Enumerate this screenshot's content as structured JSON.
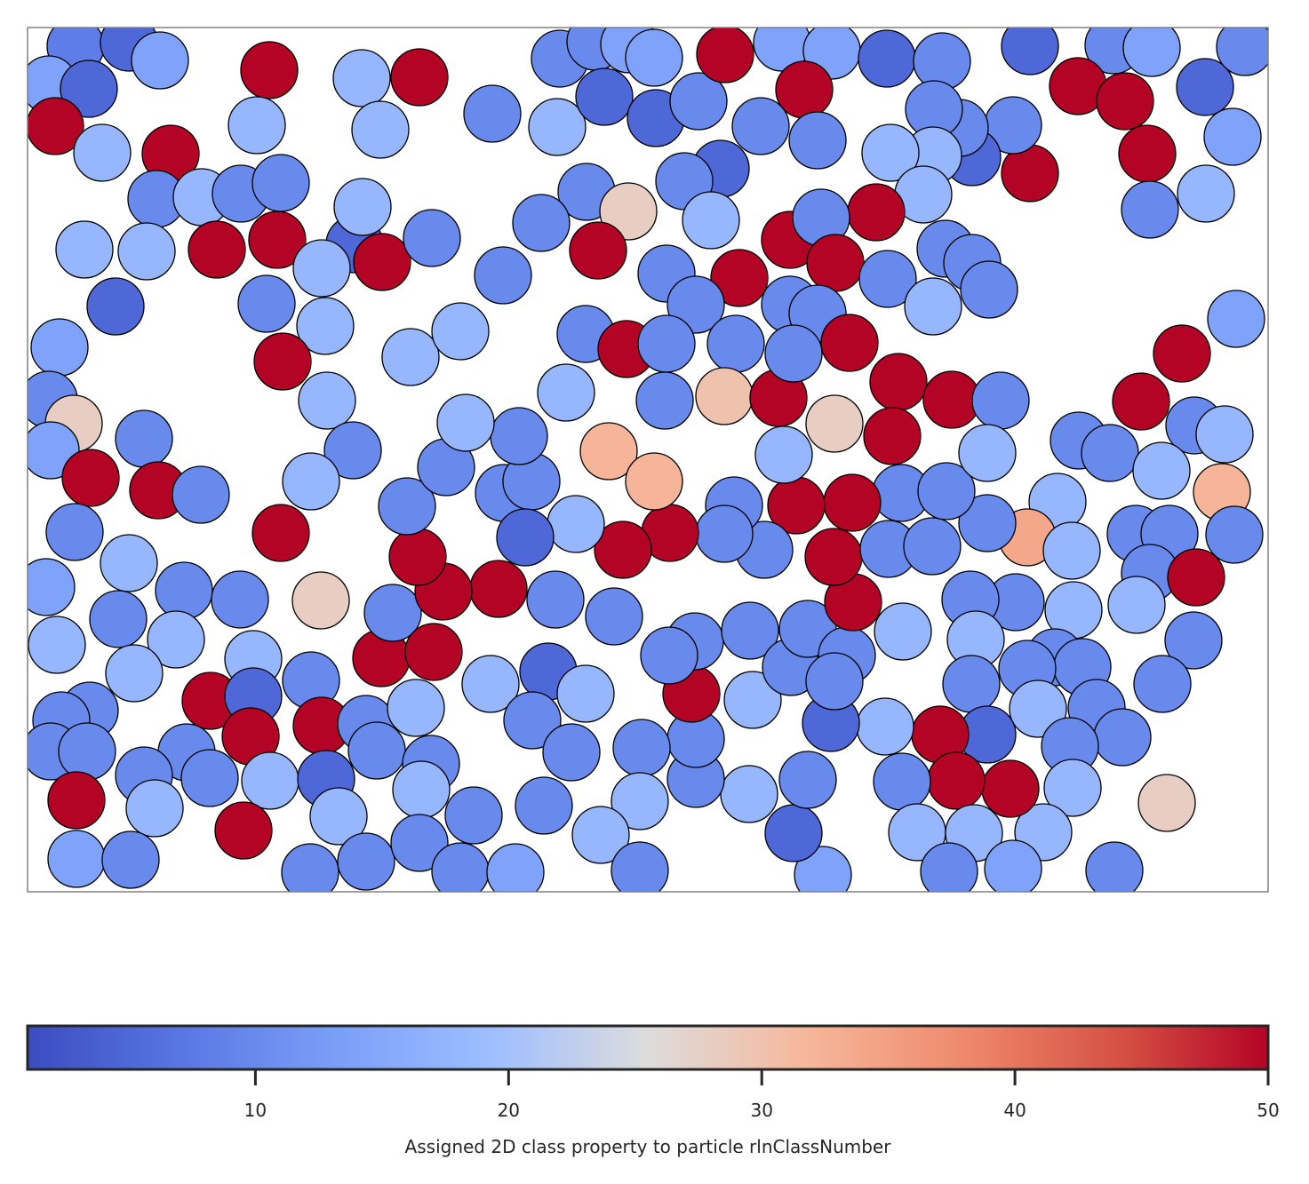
{
  "chart_data": {
    "type": "scatter",
    "description": "particles",
    "colorbar": {
      "label": "Assigned 2D class property to particle rlnClassNumber",
      "range": [
        1,
        50
      ],
      "ticks": [
        10,
        20,
        30,
        40,
        50
      ],
      "colormap": "coolwarm"
    },
    "grid": false,
    "points": [
      [
        85,
        52,
        8
      ],
      [
        145,
        48,
        5
      ],
      [
        180,
        68,
        14
      ],
      [
        55,
        95,
        14
      ],
      [
        100,
        100,
        5
      ],
      [
        62,
        142,
        50
      ],
      [
        115,
        172,
        18
      ],
      [
        192,
        173,
        50
      ],
      [
        303,
        79,
        50
      ],
      [
        407,
        88,
        18
      ],
      [
        472,
        87,
        50
      ],
      [
        289,
        141,
        18
      ],
      [
        428,
        146,
        18
      ],
      [
        176,
        224,
        10
      ],
      [
        227,
        222,
        18
      ],
      [
        271,
        218,
        10
      ],
      [
        316,
        206,
        10
      ],
      [
        95,
        281,
        18
      ],
      [
        165,
        283,
        18
      ],
      [
        244,
        281,
        50
      ],
      [
        312,
        270,
        50
      ],
      [
        399,
        275,
        5
      ],
      [
        430,
        295,
        50
      ],
      [
        362,
        302,
        18
      ],
      [
        408,
        233,
        18
      ],
      [
        486,
        268,
        10
      ],
      [
        130,
        345,
        5
      ],
      [
        67,
        391,
        14
      ],
      [
        300,
        342,
        10
      ],
      [
        366,
        367,
        18
      ],
      [
        318,
        407,
        50
      ],
      [
        462,
        402,
        18
      ],
      [
        518,
        373,
        18
      ],
      [
        55,
        450,
        10
      ],
      [
        83,
        477,
        28
      ],
      [
        57,
        507,
        14
      ],
      [
        162,
        494,
        10
      ],
      [
        102,
        538,
        50
      ],
      [
        178,
        552,
        50
      ],
      [
        226,
        557,
        10
      ],
      [
        368,
        451,
        18
      ],
      [
        397,
        507,
        10
      ],
      [
        350,
        542,
        18
      ],
      [
        316,
        600,
        50
      ],
      [
        84,
        599,
        10
      ],
      [
        145,
        634,
        18
      ],
      [
        52,
        661,
        14
      ],
      [
        207,
        665,
        10
      ],
      [
        133,
        697,
        10
      ],
      [
        270,
        675,
        10
      ],
      [
        198,
        720,
        18
      ],
      [
        64,
        726,
        18
      ],
      [
        151,
        758,
        18
      ],
      [
        361,
        676,
        28
      ],
      [
        285,
        742,
        18
      ],
      [
        429,
        741,
        50
      ],
      [
        442,
        690,
        10
      ],
      [
        488,
        734,
        50
      ],
      [
        237,
        789,
        50
      ],
      [
        285,
        784,
        5
      ],
      [
        101,
        800,
        10
      ],
      [
        69,
        811,
        10
      ],
      [
        57,
        846,
        10
      ],
      [
        98,
        846,
        10
      ],
      [
        210,
        847,
        10
      ],
      [
        162,
        873,
        10
      ],
      [
        236,
        876,
        10
      ],
      [
        282,
        829,
        50
      ],
      [
        350,
        766,
        10
      ],
      [
        362,
        817,
        50
      ],
      [
        304,
        879,
        18
      ],
      [
        367,
        877,
        5
      ],
      [
        412,
        815,
        10
      ],
      [
        424,
        845,
        10
      ],
      [
        468,
        797,
        18
      ],
      [
        485,
        860,
        10
      ],
      [
        86,
        901,
        50
      ],
      [
        174,
        910,
        18
      ],
      [
        274,
        935,
        50
      ],
      [
        381,
        919,
        18
      ],
      [
        474,
        889,
        18
      ],
      [
        533,
        918,
        10
      ],
      [
        86,
        967,
        14
      ],
      [
        147,
        968,
        10
      ],
      [
        349,
        982,
        10
      ],
      [
        412,
        970,
        10
      ],
      [
        472,
        949,
        10
      ],
      [
        518,
        981,
        10
      ],
      [
        580,
        982,
        14
      ],
      [
        554,
        128,
        10
      ],
      [
        627,
        143,
        18
      ],
      [
        630,
        66,
        10
      ],
      [
        670,
        47,
        10
      ],
      [
        708,
        50,
        14
      ],
      [
        736,
        65,
        14
      ],
      [
        680,
        109,
        5
      ],
      [
        738,
        133,
        5
      ],
      [
        786,
        114,
        10
      ],
      [
        816,
        61,
        50
      ],
      [
        880,
        48,
        14
      ],
      [
        936,
        57,
        14
      ],
      [
        905,
        101,
        50
      ],
      [
        998,
        66,
        5
      ],
      [
        1060,
        69,
        10
      ],
      [
        1159,
        52,
        5
      ],
      [
        1253,
        51,
        10
      ],
      [
        1296,
        54,
        14
      ],
      [
        1213,
        97,
        50
      ],
      [
        1266,
        114,
        50
      ],
      [
        1356,
        98,
        5
      ],
      [
        1401,
        53,
        10
      ],
      [
        1387,
        154,
        14
      ],
      [
        1291,
        173,
        50
      ],
      [
        1294,
        236,
        10
      ],
      [
        1357,
        218,
        18
      ],
      [
        1159,
        195,
        50
      ],
      [
        1140,
        141,
        10
      ],
      [
        1094,
        177,
        5
      ],
      [
        1080,
        144,
        10
      ],
      [
        1051,
        123,
        10
      ],
      [
        1050,
        175,
        18
      ],
      [
        1002,
        172,
        18
      ],
      [
        1039,
        219,
        18
      ],
      [
        986,
        239,
        50
      ],
      [
        920,
        158,
        10
      ],
      [
        856,
        142,
        10
      ],
      [
        811,
        190,
        5
      ],
      [
        770,
        204,
        10
      ],
      [
        800,
        248,
        18
      ],
      [
        660,
        216,
        10
      ],
      [
        707,
        238,
        28
      ],
      [
        609,
        251,
        10
      ],
      [
        566,
        310,
        10
      ],
      [
        673,
        282,
        50
      ],
      [
        750,
        308,
        10
      ],
      [
        832,
        313,
        50
      ],
      [
        889,
        270,
        50
      ],
      [
        924,
        245,
        10
      ],
      [
        940,
        296,
        50
      ],
      [
        783,
        343,
        10
      ],
      [
        889,
        343,
        10
      ],
      [
        920,
        353,
        10
      ],
      [
        999,
        314,
        10
      ],
      [
        1050,
        345,
        18
      ],
      [
        1064,
        280,
        10
      ],
      [
        1094,
        296,
        10
      ],
      [
        1113,
        326,
        10
      ],
      [
        1391,
        359,
        14
      ],
      [
        1330,
        398,
        50
      ],
      [
        1284,
        452,
        50
      ],
      [
        1344,
        479,
        10
      ],
      [
        1378,
        489,
        18
      ],
      [
        1214,
        496,
        10
      ],
      [
        1249,
        510,
        10
      ],
      [
        1307,
        530,
        18
      ],
      [
        1375,
        554,
        32
      ],
      [
        1190,
        565,
        18
      ],
      [
        1156,
        605,
        34
      ],
      [
        1206,
        620,
        18
      ],
      [
        1278,
        601,
        10
      ],
      [
        1316,
        601,
        10
      ],
      [
        1389,
        602,
        10
      ],
      [
        1294,
        645,
        10
      ],
      [
        1346,
        650,
        50
      ],
      [
        1279,
        681,
        18
      ],
      [
        1208,
        687,
        18
      ],
      [
        1343,
        721,
        10
      ],
      [
        1143,
        678,
        10
      ],
      [
        1092,
        675,
        10
      ],
      [
        1098,
        720,
        18
      ],
      [
        1016,
        711,
        18
      ],
      [
        1187,
        740,
        10
      ],
      [
        1218,
        751,
        10
      ],
      [
        1156,
        753,
        10
      ],
      [
        1093,
        770,
        10
      ],
      [
        1168,
        798,
        18
      ],
      [
        1234,
        797,
        10
      ],
      [
        1308,
        770,
        10
      ],
      [
        1263,
        830,
        10
      ],
      [
        1204,
        840,
        10
      ],
      [
        1207,
        887,
        18
      ],
      [
        1313,
        904,
        28
      ],
      [
        1174,
        937,
        18
      ],
      [
        1137,
        888,
        50
      ],
      [
        1111,
        827,
        5
      ],
      [
        1058,
        827,
        50
      ],
      [
        1076,
        879,
        50
      ],
      [
        1015,
        880,
        10
      ],
      [
        996,
        818,
        18
      ],
      [
        935,
        814,
        5
      ],
      [
        1032,
        937,
        18
      ],
      [
        1096,
        938,
        18
      ],
      [
        1068,
        981,
        10
      ],
      [
        1140,
        978,
        14
      ],
      [
        1254,
        980,
        10
      ],
      [
        926,
        985,
        14
      ],
      [
        893,
        938,
        5
      ],
      [
        909,
        878,
        10
      ],
      [
        843,
        894,
        18
      ],
      [
        783,
        877,
        10
      ],
      [
        783,
        832,
        10
      ],
      [
        722,
        842,
        10
      ],
      [
        720,
        902,
        18
      ],
      [
        676,
        940,
        18
      ],
      [
        720,
        980,
        10
      ],
      [
        778,
        781,
        50
      ],
      [
        782,
        722,
        10
      ],
      [
        753,
        738,
        10
      ],
      [
        847,
        788,
        18
      ],
      [
        844,
        710,
        10
      ],
      [
        890,
        751,
        10
      ],
      [
        909,
        708,
        10
      ],
      [
        953,
        738,
        10
      ],
      [
        939,
        767,
        10
      ],
      [
        960,
        678,
        50
      ],
      [
        938,
        627,
        50
      ],
      [
        1000,
        618,
        10
      ],
      [
        1049,
        615,
        10
      ],
      [
        1111,
        589,
        10
      ],
      [
        1014,
        555,
        10
      ],
      [
        1065,
        553,
        10
      ],
      [
        959,
        566,
        50
      ],
      [
        896,
        569,
        50
      ],
      [
        860,
        619,
        10
      ],
      [
        826,
        569,
        10
      ],
      [
        815,
        601,
        10
      ],
      [
        754,
        600,
        50
      ],
      [
        701,
        619,
        50
      ],
      [
        691,
        694,
        10
      ],
      [
        625,
        675,
        10
      ],
      [
        561,
        663,
        50
      ],
      [
        499,
        666,
        50
      ],
      [
        470,
        627,
        50
      ],
      [
        458,
        570,
        10
      ],
      [
        502,
        526,
        10
      ],
      [
        567,
        555,
        10
      ],
      [
        598,
        542,
        10
      ],
      [
        584,
        491,
        10
      ],
      [
        524,
        476,
        18
      ],
      [
        648,
        590,
        18
      ],
      [
        591,
        605,
        5
      ],
      [
        637,
        442,
        18
      ],
      [
        659,
        376,
        10
      ],
      [
        705,
        393,
        50
      ],
      [
        750,
        387,
        10
      ],
      [
        748,
        451,
        10
      ],
      [
        828,
        387,
        10
      ],
      [
        815,
        446,
        30
      ],
      [
        876,
        448,
        50
      ],
      [
        893,
        398,
        10
      ],
      [
        956,
        386,
        50
      ],
      [
        1011,
        430,
        50
      ],
      [
        1071,
        450,
        50
      ],
      [
        1126,
        451,
        10
      ],
      [
        1111,
        510,
        18
      ],
      [
        1004,
        491,
        50
      ],
      [
        939,
        477,
        28
      ],
      [
        882,
        512,
        18
      ],
      [
        685,
        508,
        32
      ],
      [
        736,
        542,
        32
      ],
      [
        552,
        770,
        18
      ],
      [
        617,
        756,
        5
      ],
      [
        659,
        781,
        18
      ],
      [
        599,
        811,
        10
      ],
      [
        643,
        847,
        10
      ],
      [
        612,
        907,
        10
      ]
    ]
  }
}
